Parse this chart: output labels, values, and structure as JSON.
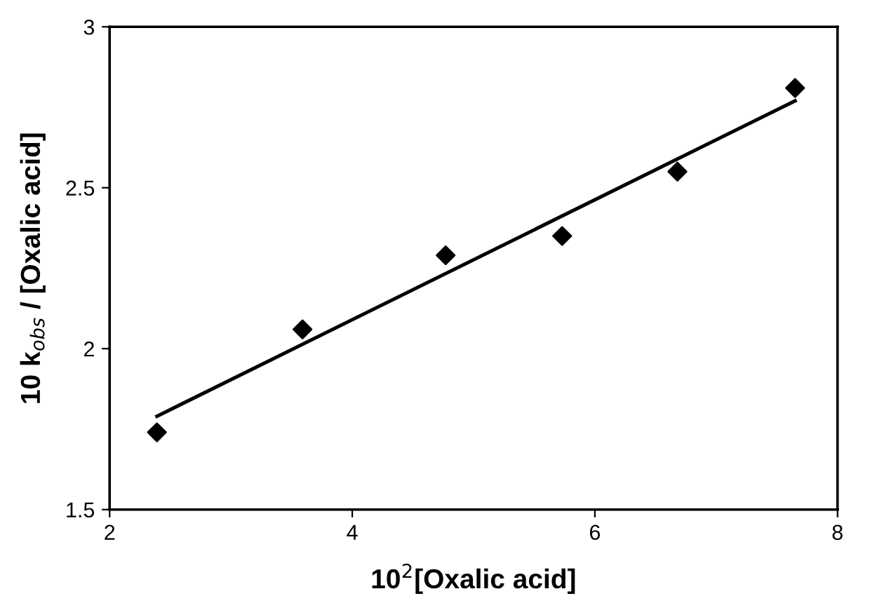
{
  "chart_data": {
    "type": "scatter",
    "xlabel": "10$^{2}$[Oxalic acid]",
    "ylabel": "10 k$_{obs}$ / [Oxalic acid]",
    "series": [
      {
        "color": "#000000",
        "marker": "diamond",
        "x": [
          2.39,
          3.59,
          4.77,
          5.73,
          6.68,
          7.65
        ],
        "values": [
          1.74,
          2.06,
          2.29,
          2.35,
          2.55,
          2.81
        ]
      },
      {
        "type": "line",
        "color": "#000000",
        "marker": "none",
        "line_style": "solid",
        "x": [
          2.39,
          7.65
        ],
        "values": [
          1.79,
          2.77
        ]
      }
    ],
    "xlim": [
      2,
      8
    ],
    "xticks": [
      2,
      4,
      6,
      8
    ],
    "ylim": [
      1.5,
      3
    ],
    "yticks": [
      1.5,
      2,
      2.5,
      3
    ],
    "grid": false,
    "legend": false
  }
}
